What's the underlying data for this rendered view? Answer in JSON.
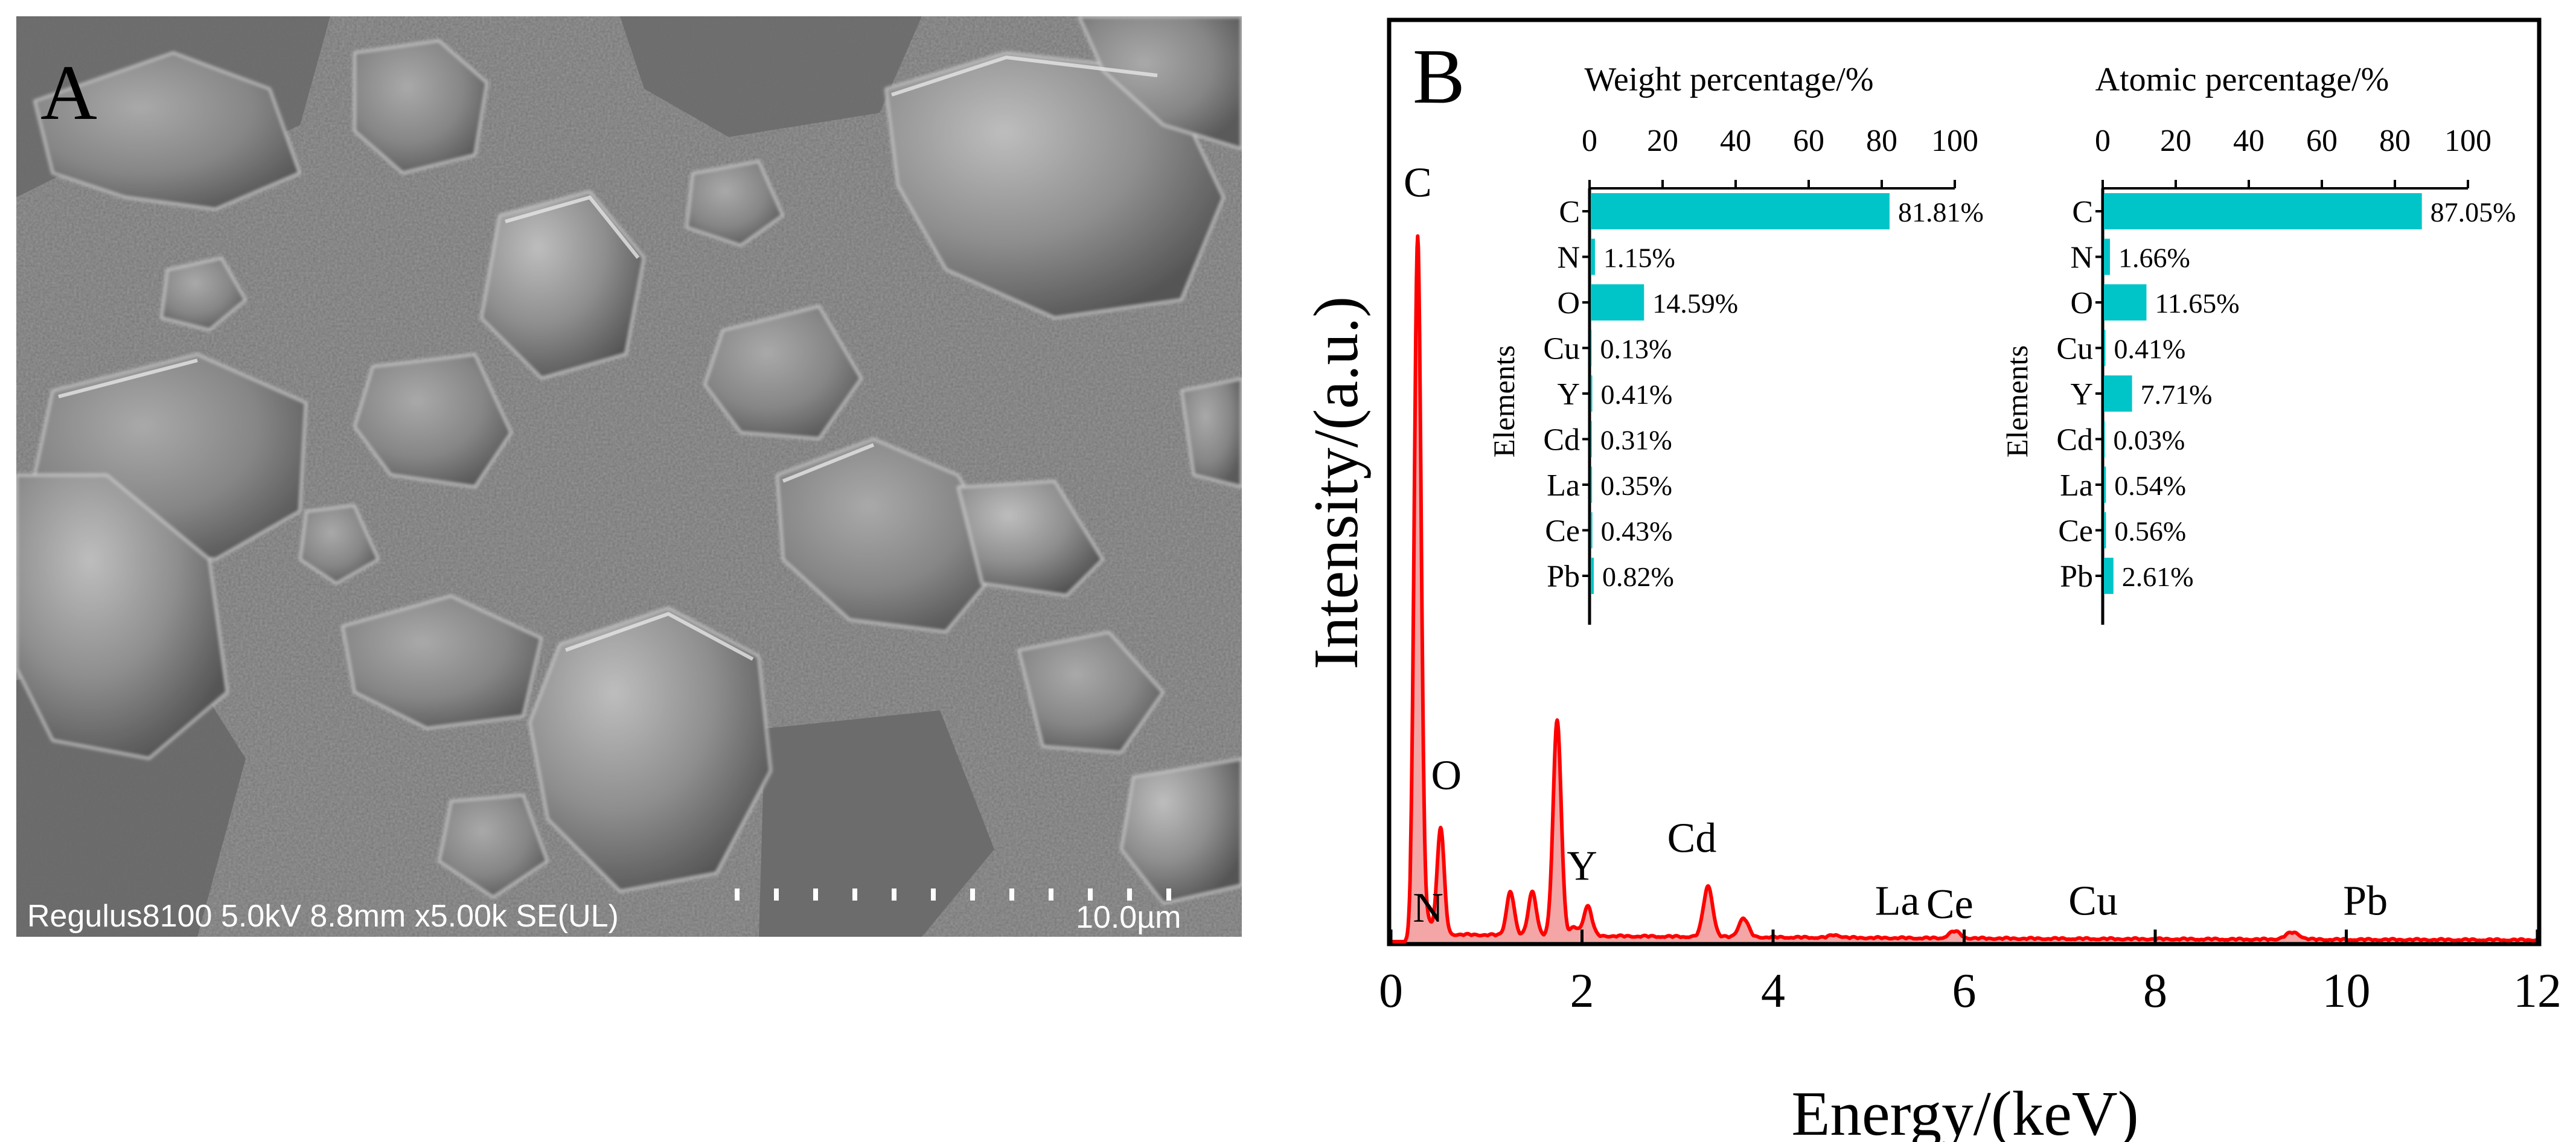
{
  "panel_a": {
    "label": "A",
    "info_bar": "Regulus8100 5.0kV 8.8mm x5.00k SE(UL)",
    "scale_label": "10.0µm"
  },
  "panel_b": {
    "label": "B"
  },
  "chart_data": [
    {
      "type": "line",
      "name": "EDS spectrum",
      "xlabel": "Energy/(keV)",
      "ylabel": "Intensity/(a.u.)",
      "xlim": [
        0,
        12
      ],
      "x_ticks": [
        "0",
        "2",
        "4",
        "6",
        "8",
        "10",
        "12"
      ],
      "y_axis_ticks_shown": false,
      "color": "#ff0000",
      "fill_color": "#f4a6a6",
      "peaks": [
        {
          "energy": 0.28,
          "height": 1.0
        },
        {
          "energy": 0.39,
          "height": 0.02
        },
        {
          "energy": 0.52,
          "height": 0.153
        },
        {
          "energy": 1.25,
          "height": 0.063
        },
        {
          "energy": 1.48,
          "height": 0.064
        },
        {
          "energy": 1.74,
          "height": 0.31
        },
        {
          "energy": 1.92,
          "height": 0.012
        },
        {
          "energy": 2.06,
          "height": 0.043
        },
        {
          "energy": 3.32,
          "height": 0.073
        },
        {
          "energy": 3.69,
          "height": 0.027
        },
        {
          "energy": 4.65,
          "height": 0.004
        },
        {
          "energy": 5.9,
          "height": 0.01
        },
        {
          "energy": 9.44,
          "height": 0.01
        }
      ],
      "background_level": 0.007,
      "annotations": [
        {
          "text": "C",
          "x": 0.28,
          "y": 1.06
        },
        {
          "text": "N",
          "x": 0.39,
          "y": 0.02
        },
        {
          "text": "O",
          "x": 0.58,
          "y": 0.21
        },
        {
          "text": "Y",
          "x": 2.0,
          "y": 0.08
        },
        {
          "text": "Cd",
          "x": 3.15,
          "y": 0.12
        },
        {
          "text": "La",
          "x": 5.3,
          "y": 0.03
        },
        {
          "text": "Ce",
          "x": 5.85,
          "y": 0.025
        },
        {
          "text": "Cu",
          "x": 7.35,
          "y": 0.03
        },
        {
          "text": "Pb",
          "x": 10.2,
          "y": 0.03
        }
      ]
    },
    {
      "type": "bar",
      "orientation": "horizontal",
      "title": "Weight percentage/%",
      "ylabel": "Elements",
      "xlim": [
        0,
        100
      ],
      "x_ticks": [
        "0",
        "20",
        "40",
        "60",
        "80",
        "100"
      ],
      "color": "#00c5c8",
      "categories": [
        "C",
        "N",
        "O",
        "Cu",
        "Y",
        "Cd",
        "La",
        "Ce",
        "Pb"
      ],
      "values": [
        81.81,
        1.15,
        14.59,
        0.13,
        0.41,
        0.31,
        0.35,
        0.43,
        0.82
      ],
      "value_labels": [
        "81.81%",
        "1.15%",
        "14.59%",
        "0.13%",
        "0.41%",
        "0.31%",
        "0.35%",
        "0.43%",
        "0.82%"
      ]
    },
    {
      "type": "bar",
      "orientation": "horizontal",
      "title": "Atomic percentage/%",
      "ylabel": "Elements",
      "xlim": [
        0,
        100
      ],
      "x_ticks": [
        "0",
        "20",
        "40",
        "60",
        "80",
        "100"
      ],
      "color": "#00c5c8",
      "categories": [
        "C",
        "N",
        "O",
        "Cu",
        "Y",
        "Cd",
        "La",
        "Ce",
        "Pb"
      ],
      "values": [
        87.05,
        1.66,
        11.65,
        0.41,
        7.71,
        0.03,
        0.54,
        0.56,
        2.61
      ],
      "value_labels": [
        "87.05%",
        "1.66%",
        "11.65%",
        "0.41%",
        "7.71%",
        "0.03%",
        "0.54%",
        "0.56%",
        "2.61%"
      ]
    }
  ]
}
